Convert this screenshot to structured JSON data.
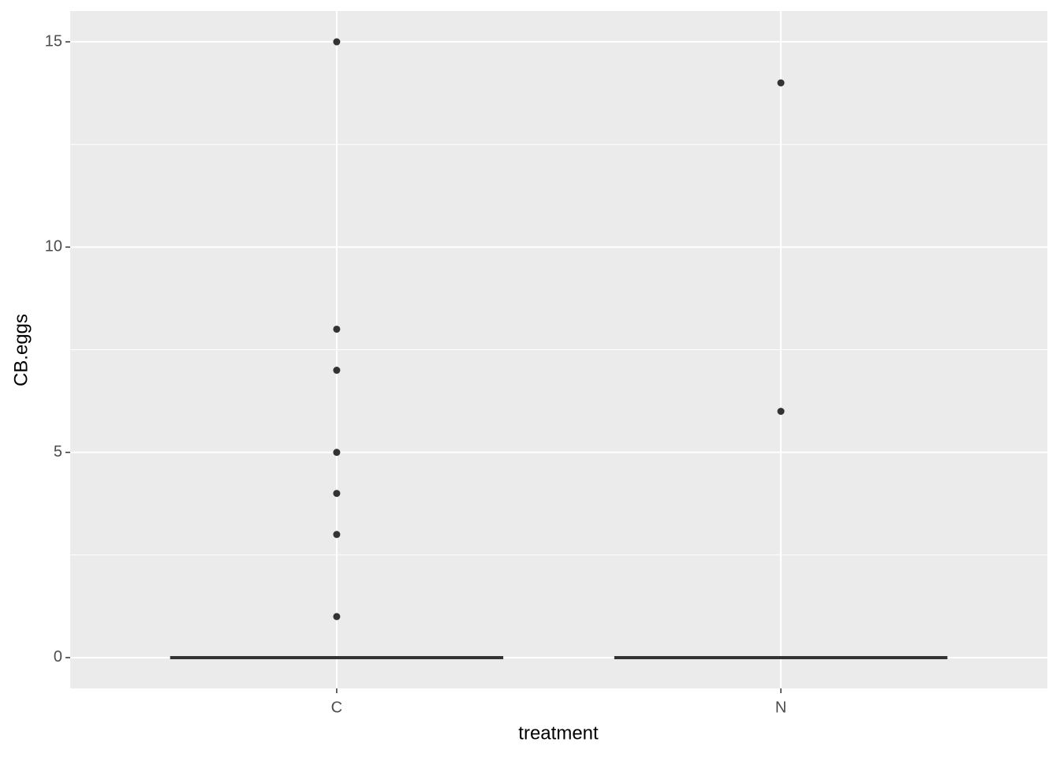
{
  "chart_data": {
    "type": "box",
    "x_label": "treatment",
    "y_label": "CB.eggs",
    "categories": [
      "C",
      "N"
    ],
    "boxes": [
      {
        "min": 0,
        "q1": 0,
        "median": 0,
        "q3": 0,
        "max": 0,
        "outliers": [
          15,
          8,
          7,
          5,
          4,
          3,
          1
        ]
      },
      {
        "min": 0,
        "q1": 0,
        "median": 0,
        "q3": 0,
        "max": 0,
        "outliers": [
          14,
          6
        ]
      }
    ],
    "color": "#333333",
    "ylim": [
      -0.75,
      15.75
    ],
    "yticks": [
      0,
      5,
      10,
      15
    ],
    "grid": true
  }
}
